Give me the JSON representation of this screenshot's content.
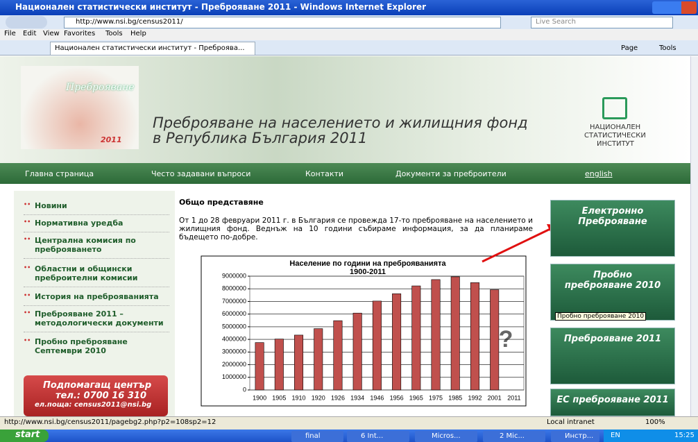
{
  "window": {
    "title": "Национален статистически институт - Преброяване 2011 - Windows Internet Explorer",
    "address": "http://www.nsi.bg/census2011/",
    "search": "Live Search",
    "menu": [
      "File",
      "Edit",
      "View",
      "Favorites",
      "Tools",
      "Help"
    ],
    "tab": "Национален статистически институт - Преброява...",
    "toolbar": [
      "Page",
      "Tools"
    ]
  },
  "header": {
    "logo_text": "Преброяване",
    "logo_year": "2011",
    "title_line1": "Преброяване на населението и жилищния фонд",
    "title_line2": "в Република България  2011",
    "institute": [
      "НАЦИОНАЛЕН",
      "СТАТИСТИЧЕСКИ",
      "ИНСТИТУТ"
    ]
  },
  "nav": [
    "Главна страница",
    "Често задавани въпроси",
    "Контакти",
    "Документи за преброители",
    "english"
  ],
  "sidebar": [
    "Новини",
    "Нормативна уредба",
    "Централна комисия по преброяването",
    "Областни и общински преброителни комисии",
    "История на преброяванията",
    "Преброяване 2011 – методологически документи",
    "Пробно преброяване Септември 2010"
  ],
  "help_center": {
    "title": "Подпомагащ център",
    "phone": "тел.: 0700 16 310",
    "email": "ел.поща: census2011@nsi.bg"
  },
  "content": {
    "heading": "Общо представяне",
    "text": "От 1 до 28 февруари 2011 г. в България се провежда 17-то преброяване на населението и жилищния фонд. Веднъж на 10 години събираме информация, за да планираме бъдещето по-добре."
  },
  "right_boxes": [
    "Електронно Преброяване",
    "Пробно преброяване 2010",
    "Преброяване 2011",
    "ЕС преброяване 2011"
  ],
  "tooltip": "Пробно преброяване 2010",
  "status": {
    "url": "http://www.nsi.bg/census2011/pagebg2.php?p2=108sp2=12",
    "zone": "Local intranet",
    "zoom": "100%"
  },
  "taskbar": {
    "start": "start",
    "items": [
      "final",
      "6 Int...",
      "Micros...",
      "2 Mic...",
      "Инстр..."
    ],
    "lang": "EN",
    "clock": "15:25"
  },
  "chart_data": {
    "type": "bar",
    "title": "Население по години на преброяванията",
    "subtitle": "1900-2011",
    "categories": [
      "1900",
      "1905",
      "1910",
      "1920",
      "1926",
      "1934",
      "1946",
      "1956",
      "1965",
      "1975",
      "1985",
      "1992",
      "2001",
      "2011"
    ],
    "values": [
      3750000,
      4030000,
      4340000,
      4850000,
      5480000,
      6080000,
      7030000,
      7610000,
      8230000,
      8730000,
      8950000,
      8490000,
      7930000,
      null
    ],
    "color": "#c0504d",
    "ylim": [
      0,
      9000000
    ],
    "yticks": [
      0,
      1000000,
      2000000,
      3000000,
      4000000,
      5000000,
      6000000,
      7000000,
      8000000,
      9000000
    ],
    "grid": true
  }
}
